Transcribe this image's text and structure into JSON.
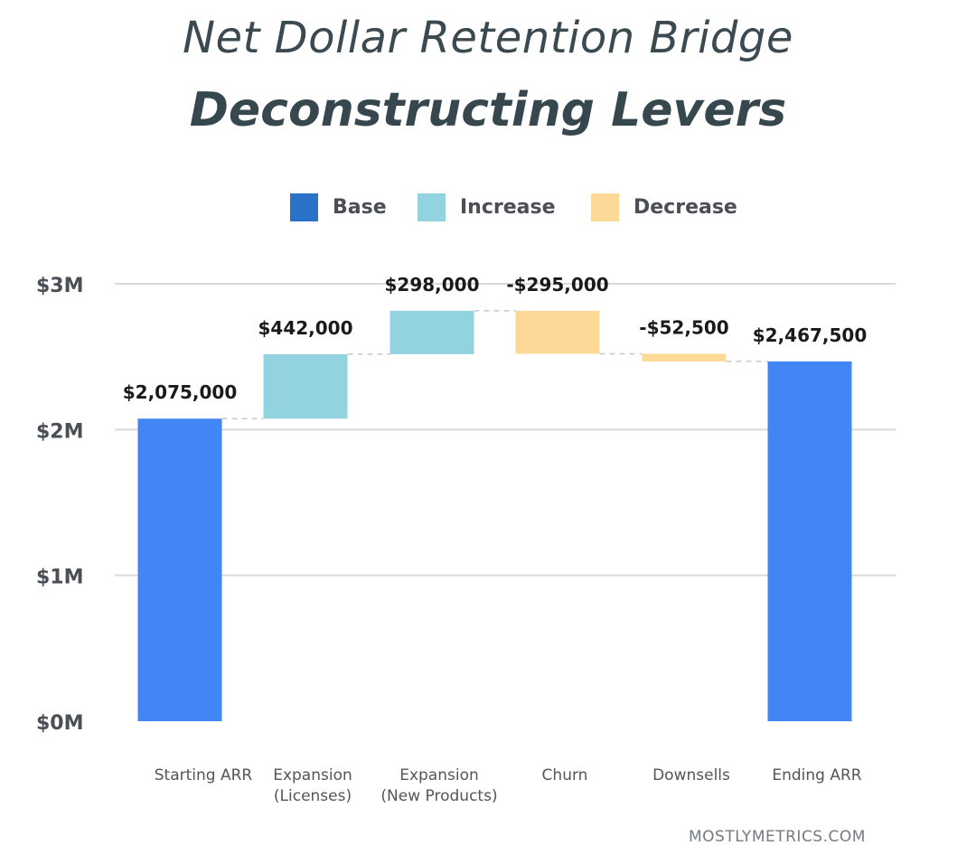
{
  "title": "Net Dollar Retention Bridge",
  "subtitle": "Deconstructing Levers",
  "legend": [
    {
      "label": "Base",
      "color": "#2a72c8"
    },
    {
      "label": "Increase",
      "color": "#93d3df"
    },
    {
      "label": "Decrease",
      "color": "#fcd996"
    }
  ],
  "footer": "MOSTLYMETRICS.COM",
  "colors": {
    "base": "#4285f4",
    "increase": "#93d3df",
    "decrease": "#fcd996",
    "grid": "#d9d9d9",
    "connector": "#c8c8c8",
    "tick_text": "#4a4f55",
    "label_text": "#1a1a1a",
    "category_text": "#555555"
  },
  "chart_data": {
    "type": "waterfall",
    "categories": [
      [
        "Starting ARR"
      ],
      [
        "Expansion",
        "(Licenses)"
      ],
      [
        "Expansion",
        "(New Products)"
      ],
      [
        "Churn"
      ],
      [
        "Downsells"
      ],
      [
        "Ending ARR"
      ]
    ],
    "values": [
      2075000,
      442000,
      298000,
      -295000,
      -52500,
      2467500
    ],
    "kinds": [
      "base",
      "increase",
      "increase",
      "decrease",
      "decrease",
      "base"
    ],
    "data_labels": [
      "$2,075,000",
      "$442,000",
      "$298,000",
      "-$295,000",
      "-$52,500",
      "$2,467,500"
    ],
    "y_ticks": [
      {
        "value": 0,
        "label": "$0M"
      },
      {
        "value": 1000000,
        "label": "$1M"
      },
      {
        "value": 2000000,
        "label": "$2M"
      },
      {
        "value": 3000000,
        "label": "$3M"
      }
    ],
    "ylim": [
      0,
      3000000
    ],
    "grid": true,
    "legend_position": "top"
  }
}
